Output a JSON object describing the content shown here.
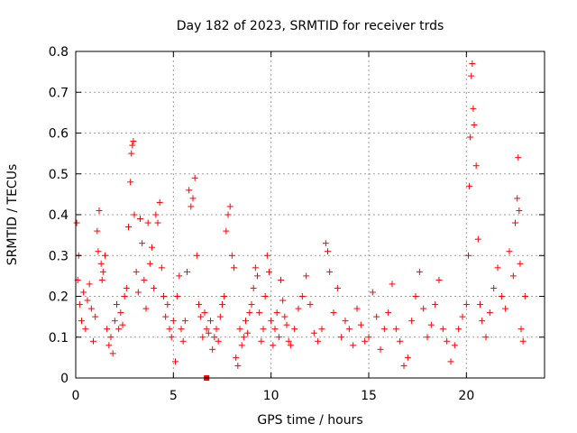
{
  "chart_data": {
    "type": "scatter",
    "title": "Day 182 of 2023, SRMTID for receiver trds",
    "xlabel": "GPS time / hours",
    "ylabel": "SRMTID / TECUs",
    "xlim": [
      0,
      24
    ],
    "ylim": [
      0,
      0.8
    ],
    "x_ticks": [
      0,
      5,
      10,
      15,
      20
    ],
    "x_tick_labels": [
      "0",
      "5",
      "10",
      "15",
      "20"
    ],
    "y_ticks": [
      0,
      0.1,
      0.2,
      0.3,
      0.4,
      0.5,
      0.6,
      0.7,
      0.8
    ],
    "y_tick_labels": [
      "0",
      "0.1",
      "0.2",
      "0.3",
      "0.4",
      "0.5",
      "0.6",
      "0.7",
      "0.8"
    ],
    "grid": true,
    "marker": "+",
    "color": "#ff0000",
    "series": [
      {
        "name": "SRMTID",
        "points": [
          [
            0.05,
            0.38
          ],
          [
            0.1,
            0.24
          ],
          [
            0.15,
            0.3
          ],
          [
            0.2,
            0.18
          ],
          [
            0.3,
            0.14
          ],
          [
            0.4,
            0.21
          ],
          [
            0.5,
            0.12
          ],
          [
            0.6,
            0.19
          ],
          [
            0.7,
            0.23
          ],
          [
            0.8,
            0.17
          ],
          [
            0.9,
            0.09
          ],
          [
            1.0,
            0.15
          ],
          [
            1.1,
            0.36
          ],
          [
            1.15,
            0.31
          ],
          [
            1.2,
            0.41
          ],
          [
            1.3,
            0.28
          ],
          [
            1.35,
            0.24
          ],
          [
            1.4,
            0.26
          ],
          [
            1.5,
            0.3
          ],
          [
            1.6,
            0.12
          ],
          [
            1.7,
            0.08
          ],
          [
            1.8,
            0.1
          ],
          [
            1.9,
            0.06
          ],
          [
            2.0,
            0.14
          ],
          [
            2.1,
            0.18
          ],
          [
            2.2,
            0.12
          ],
          [
            2.3,
            0.16
          ],
          [
            2.4,
            0.13
          ],
          [
            2.5,
            0.2
          ],
          [
            2.6,
            0.22
          ],
          [
            2.7,
            0.37
          ],
          [
            2.8,
            0.48
          ],
          [
            2.85,
            0.55
          ],
          [
            2.9,
            0.57
          ],
          [
            2.95,
            0.58
          ],
          [
            3.0,
            0.4
          ],
          [
            3.1,
            0.26
          ],
          [
            3.2,
            0.21
          ],
          [
            3.3,
            0.39
          ],
          [
            3.4,
            0.33
          ],
          [
            3.5,
            0.24
          ],
          [
            3.6,
            0.17
          ],
          [
            3.7,
            0.38
          ],
          [
            3.8,
            0.28
          ],
          [
            3.9,
            0.32
          ],
          [
            4.0,
            0.22
          ],
          [
            4.1,
            0.4
          ],
          [
            4.2,
            0.38
          ],
          [
            4.3,
            0.43
          ],
          [
            4.4,
            0.27
          ],
          [
            4.5,
            0.2
          ],
          [
            4.6,
            0.15
          ],
          [
            4.7,
            0.18
          ],
          [
            4.8,
            0.12
          ],
          [
            4.9,
            0.1
          ],
          [
            5.0,
            0.14
          ],
          [
            5.1,
            0.04
          ],
          [
            5.2,
            0.2
          ],
          [
            5.3,
            0.25
          ],
          [
            5.4,
            0.12
          ],
          [
            5.5,
            0.09
          ],
          [
            5.6,
            0.14
          ],
          [
            5.7,
            0.26
          ],
          [
            5.8,
            0.46
          ],
          [
            5.9,
            0.42
          ],
          [
            6.0,
            0.44
          ],
          [
            6.1,
            0.49
          ],
          [
            6.2,
            0.3
          ],
          [
            6.3,
            0.18
          ],
          [
            6.4,
            0.15
          ],
          [
            6.5,
            0.1
          ],
          [
            6.6,
            0.16
          ],
          [
            6.7,
            0.12
          ],
          [
            6.8,
            0.11
          ],
          [
            6.9,
            0.14
          ],
          [
            7.0,
            0.07
          ],
          [
            7.1,
            0.1
          ],
          [
            7.2,
            0.12
          ],
          [
            7.3,
            0.09
          ],
          [
            7.4,
            0.15
          ],
          [
            7.5,
            0.18
          ],
          [
            7.6,
            0.2
          ],
          [
            7.7,
            0.36
          ],
          [
            7.8,
            0.4
          ],
          [
            7.9,
            0.42
          ],
          [
            8.0,
            0.3
          ],
          [
            8.1,
            0.27
          ],
          [
            8.2,
            0.05
          ],
          [
            8.3,
            0.03
          ],
          [
            8.4,
            0.12
          ],
          [
            8.5,
            0.08
          ],
          [
            8.6,
            0.1
          ],
          [
            8.7,
            0.14
          ],
          [
            8.8,
            0.11
          ],
          [
            8.9,
            0.16
          ],
          [
            9.0,
            0.18
          ],
          [
            9.1,
            0.22
          ],
          [
            9.2,
            0.27
          ],
          [
            9.3,
            0.25
          ],
          [
            9.4,
            0.16
          ],
          [
            9.5,
            0.09
          ],
          [
            9.6,
            0.12
          ],
          [
            9.7,
            0.2
          ],
          [
            9.8,
            0.3
          ],
          [
            9.9,
            0.26
          ],
          [
            10.0,
            0.14
          ],
          [
            10.1,
            0.08
          ],
          [
            10.2,
            0.12
          ],
          [
            10.3,
            0.16
          ],
          [
            10.4,
            0.1
          ],
          [
            10.5,
            0.24
          ],
          [
            10.6,
            0.19
          ],
          [
            10.7,
            0.15
          ],
          [
            10.8,
            0.13
          ],
          [
            10.9,
            0.09
          ],
          [
            11.0,
            0.08
          ],
          [
            11.2,
            0.12
          ],
          [
            11.4,
            0.17
          ],
          [
            11.6,
            0.2
          ],
          [
            11.8,
            0.25
          ],
          [
            12.0,
            0.18
          ],
          [
            12.2,
            0.11
          ],
          [
            12.4,
            0.09
          ],
          [
            12.6,
            0.12
          ],
          [
            12.8,
            0.33
          ],
          [
            12.9,
            0.31
          ],
          [
            13.0,
            0.26
          ],
          [
            13.2,
            0.16
          ],
          [
            13.4,
            0.22
          ],
          [
            13.6,
            0.1
          ],
          [
            13.8,
            0.14
          ],
          [
            14.0,
            0.12
          ],
          [
            14.2,
            0.08
          ],
          [
            14.4,
            0.17
          ],
          [
            14.6,
            0.13
          ],
          [
            14.8,
            0.09
          ],
          [
            15.0,
            0.1
          ],
          [
            15.2,
            0.21
          ],
          [
            15.4,
            0.15
          ],
          [
            15.6,
            0.07
          ],
          [
            15.8,
            0.12
          ],
          [
            16.0,
            0.16
          ],
          [
            16.2,
            0.23
          ],
          [
            16.4,
            0.12
          ],
          [
            16.6,
            0.09
          ],
          [
            16.8,
            0.03
          ],
          [
            17.0,
            0.05
          ],
          [
            17.2,
            0.14
          ],
          [
            17.4,
            0.2
          ],
          [
            17.6,
            0.26
          ],
          [
            17.8,
            0.17
          ],
          [
            18.0,
            0.1
          ],
          [
            18.2,
            0.13
          ],
          [
            18.4,
            0.18
          ],
          [
            18.6,
            0.24
          ],
          [
            18.8,
            0.12
          ],
          [
            19.0,
            0.09
          ],
          [
            19.2,
            0.04
          ],
          [
            19.4,
            0.08
          ],
          [
            19.6,
            0.12
          ],
          [
            19.8,
            0.15
          ],
          [
            20.0,
            0.18
          ],
          [
            20.1,
            0.3
          ],
          [
            20.15,
            0.47
          ],
          [
            20.2,
            0.59
          ],
          [
            20.25,
            0.74
          ],
          [
            20.3,
            0.77
          ],
          [
            20.35,
            0.66
          ],
          [
            20.4,
            0.62
          ],
          [
            20.5,
            0.52
          ],
          [
            20.6,
            0.34
          ],
          [
            20.7,
            0.18
          ],
          [
            20.8,
            0.14
          ],
          [
            21.0,
            0.1
          ],
          [
            21.2,
            0.16
          ],
          [
            21.4,
            0.22
          ],
          [
            21.6,
            0.27
          ],
          [
            21.8,
            0.2
          ],
          [
            22.0,
            0.17
          ],
          [
            22.2,
            0.31
          ],
          [
            22.4,
            0.25
          ],
          [
            22.5,
            0.38
          ],
          [
            22.6,
            0.44
          ],
          [
            22.65,
            0.54
          ],
          [
            22.7,
            0.41
          ],
          [
            22.75,
            0.28
          ],
          [
            22.8,
            0.12
          ],
          [
            22.9,
            0.09
          ],
          [
            23.0,
            0.2
          ]
        ]
      }
    ],
    "outlier_marker": [
      6.7,
      0.0
    ]
  }
}
